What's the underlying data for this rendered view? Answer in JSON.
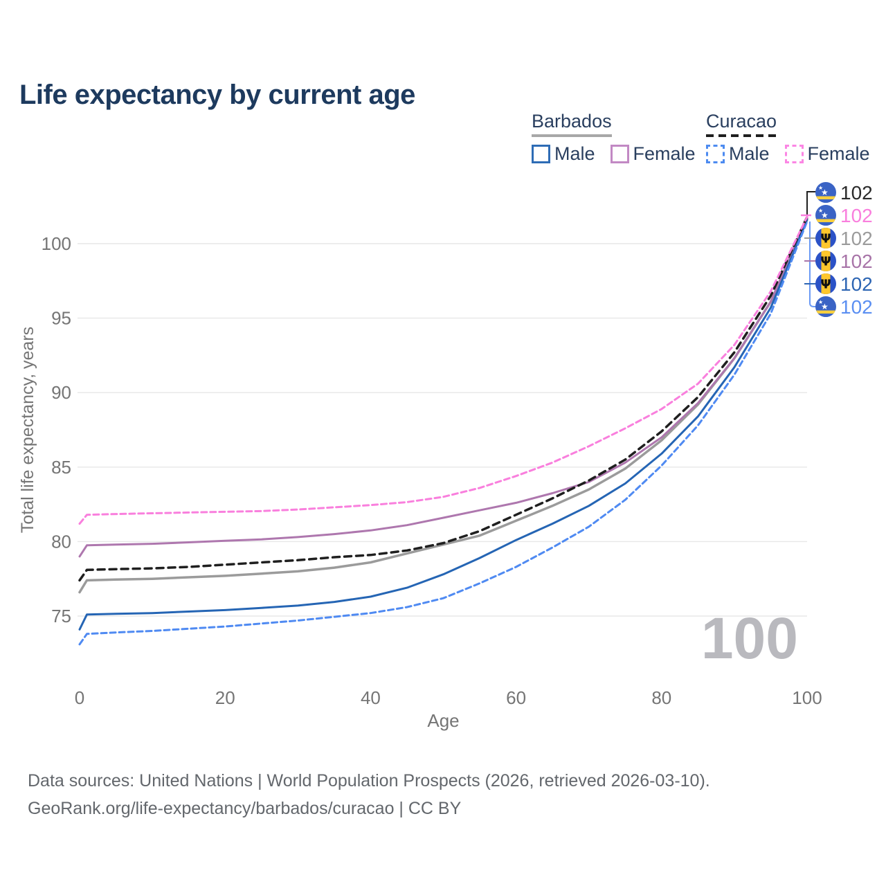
{
  "title": "Life expectancy by current age",
  "colors": {
    "title_text": "#1d3a5e",
    "legend_text": "#2a3f5f",
    "axis_text": "#757575",
    "grid": "#e7e7e7",
    "watermark": "#b9b9be",
    "footer_text": "#63676c",
    "background": "#ffffff"
  },
  "legend": {
    "groups": [
      {
        "id": "barbados",
        "label": "Barbados",
        "line_style": "solid",
        "key_color": "#a8a8a8",
        "items": [
          {
            "id": "male",
            "label": "Male",
            "swatch_color": "#2e6cb5",
            "swatch_style": "solid"
          },
          {
            "id": "female",
            "label": "Female",
            "swatch_color": "#c289c4",
            "swatch_style": "solid"
          }
        ]
      },
      {
        "id": "curacao",
        "label": "Curacao",
        "line_style": "dashed",
        "key_color": "#1f1f1f",
        "items": [
          {
            "id": "male",
            "label": "Male",
            "swatch_color": "#4d8bf0",
            "swatch_style": "dashed"
          },
          {
            "id": "female",
            "label": "Female",
            "swatch_color": "#fb86e4",
            "swatch_style": "dashed"
          }
        ]
      }
    ]
  },
  "chart_data": {
    "type": "line",
    "title": "Life expectancy by current age",
    "xlabel": "Age",
    "ylabel": "Total life expectancy, years",
    "xlim": [
      0,
      100
    ],
    "ylim": [
      72.5,
      103
    ],
    "x_ticks": [
      0,
      20,
      40,
      60,
      80,
      100
    ],
    "y_ticks": [
      75,
      80,
      85,
      90,
      95,
      100
    ],
    "grid": "horizontal-only",
    "legend_position": "top-right",
    "series": [
      {
        "name": "Barbados Total",
        "country": "Barbados",
        "sex": "All",
        "color": "#9b9b9b",
        "dash": "solid",
        "width": 3.5,
        "end_value": 102,
        "points": [
          [
            0,
            76.6
          ],
          [
            1,
            77.4
          ],
          [
            5,
            77.45
          ],
          [
            10,
            77.5
          ],
          [
            15,
            77.6
          ],
          [
            20,
            77.7
          ],
          [
            25,
            77.85
          ],
          [
            30,
            78.0
          ],
          [
            35,
            78.25
          ],
          [
            40,
            78.6
          ],
          [
            45,
            79.2
          ],
          [
            50,
            79.8
          ],
          [
            55,
            80.4
          ],
          [
            60,
            81.4
          ],
          [
            65,
            82.4
          ],
          [
            70,
            83.5
          ],
          [
            75,
            84.9
          ],
          [
            80,
            86.8
          ],
          [
            85,
            89.2
          ],
          [
            90,
            92.3
          ],
          [
            95,
            96.1
          ],
          [
            100,
            101.7
          ]
        ]
      },
      {
        "name": "Barbados Female",
        "country": "Barbados",
        "sex": "Female",
        "color": "#ae77ae",
        "dash": "solid",
        "width": 3,
        "end_value": 102,
        "points": [
          [
            0,
            79.0
          ],
          [
            1,
            79.75
          ],
          [
            5,
            79.8
          ],
          [
            10,
            79.85
          ],
          [
            15,
            79.95
          ],
          [
            20,
            80.05
          ],
          [
            25,
            80.15
          ],
          [
            30,
            80.3
          ],
          [
            35,
            80.5
          ],
          [
            40,
            80.75
          ],
          [
            45,
            81.1
          ],
          [
            50,
            81.6
          ],
          [
            55,
            82.1
          ],
          [
            60,
            82.6
          ],
          [
            65,
            83.25
          ],
          [
            70,
            84.0
          ],
          [
            75,
            85.3
          ],
          [
            80,
            87.0
          ],
          [
            85,
            89.3
          ],
          [
            90,
            92.3
          ],
          [
            95,
            96.1
          ],
          [
            100,
            101.7
          ]
        ]
      },
      {
        "name": "Barbados Male",
        "country": "Barbados",
        "sex": "Male",
        "color": "#2565b4",
        "dash": "solid",
        "width": 3,
        "end_value": 102,
        "points": [
          [
            0,
            74.1
          ],
          [
            1,
            75.1
          ],
          [
            5,
            75.15
          ],
          [
            10,
            75.2
          ],
          [
            15,
            75.3
          ],
          [
            20,
            75.4
          ],
          [
            25,
            75.55
          ],
          [
            30,
            75.7
          ],
          [
            35,
            75.95
          ],
          [
            40,
            76.3
          ],
          [
            45,
            76.9
          ],
          [
            50,
            77.8
          ],
          [
            55,
            78.9
          ],
          [
            60,
            80.1
          ],
          [
            65,
            81.2
          ],
          [
            70,
            82.4
          ],
          [
            75,
            83.9
          ],
          [
            80,
            85.9
          ],
          [
            85,
            88.4
          ],
          [
            90,
            91.7
          ],
          [
            95,
            95.7
          ],
          [
            100,
            101.6
          ]
        ]
      },
      {
        "name": "Curacao Male",
        "country": "Curacao",
        "sex": "Male",
        "color": "#4f8af2",
        "dash": "dashed",
        "width": 3,
        "end_value": 102,
        "points": [
          [
            0,
            73.1
          ],
          [
            1,
            73.8
          ],
          [
            5,
            73.9
          ],
          [
            10,
            74.0
          ],
          [
            15,
            74.15
          ],
          [
            20,
            74.3
          ],
          [
            25,
            74.5
          ],
          [
            30,
            74.7
          ],
          [
            35,
            74.95
          ],
          [
            40,
            75.2
          ],
          [
            45,
            75.6
          ],
          [
            50,
            76.2
          ],
          [
            55,
            77.2
          ],
          [
            60,
            78.3
          ],
          [
            65,
            79.6
          ],
          [
            70,
            81.0
          ],
          [
            75,
            82.8
          ],
          [
            80,
            85.1
          ],
          [
            85,
            87.8
          ],
          [
            90,
            91.2
          ],
          [
            95,
            95.3
          ],
          [
            100,
            101.5
          ]
        ]
      },
      {
        "name": "Curacao Total",
        "country": "Curacao",
        "sex": "All",
        "color": "#1f1f1f",
        "dash": "dashed",
        "width": 3.5,
        "end_value": 102,
        "points": [
          [
            0,
            77.4
          ],
          [
            1,
            78.1
          ],
          [
            5,
            78.15
          ],
          [
            10,
            78.2
          ],
          [
            15,
            78.3
          ],
          [
            20,
            78.45
          ],
          [
            25,
            78.6
          ],
          [
            30,
            78.75
          ],
          [
            35,
            78.95
          ],
          [
            40,
            79.1
          ],
          [
            45,
            79.4
          ],
          [
            50,
            79.9
          ],
          [
            55,
            80.7
          ],
          [
            60,
            81.8
          ],
          [
            65,
            82.9
          ],
          [
            70,
            84.1
          ],
          [
            75,
            85.5
          ],
          [
            80,
            87.4
          ],
          [
            85,
            89.7
          ],
          [
            90,
            92.7
          ],
          [
            95,
            96.5
          ],
          [
            100,
            101.8
          ]
        ]
      },
      {
        "name": "Curacao Female",
        "country": "Curacao",
        "sex": "Female",
        "color": "#f97fdd",
        "dash": "dashed",
        "width": 3,
        "end_value": 102,
        "points": [
          [
            0,
            81.2
          ],
          [
            1,
            81.8
          ],
          [
            5,
            81.85
          ],
          [
            10,
            81.9
          ],
          [
            15,
            81.95
          ],
          [
            20,
            82.0
          ],
          [
            25,
            82.05
          ],
          [
            30,
            82.15
          ],
          [
            35,
            82.3
          ],
          [
            40,
            82.45
          ],
          [
            45,
            82.65
          ],
          [
            50,
            83.0
          ],
          [
            55,
            83.6
          ],
          [
            60,
            84.4
          ],
          [
            65,
            85.3
          ],
          [
            70,
            86.4
          ],
          [
            75,
            87.6
          ],
          [
            80,
            88.9
          ],
          [
            85,
            90.6
          ],
          [
            90,
            93.2
          ],
          [
            95,
            96.8
          ],
          [
            100,
            101.8
          ]
        ]
      }
    ]
  },
  "end_labels": [
    {
      "series": "Curacao Total",
      "flag": "curacao",
      "value": "102",
      "color": "#2b2b2b"
    },
    {
      "series": "Curacao Female",
      "flag": "curacao",
      "value": "102",
      "color": "#f97fdd"
    },
    {
      "series": "Barbados Total",
      "flag": "barbados",
      "value": "102",
      "color": "#9b9b9b"
    },
    {
      "series": "Barbados Female",
      "flag": "barbados",
      "value": "102",
      "color": "#a874a8"
    },
    {
      "series": "Barbados Male",
      "flag": "barbados",
      "value": "102",
      "color": "#2d65b3"
    },
    {
      "series": "Curacao Male",
      "flag": "curacao",
      "value": "102",
      "color": "#5b8ff2"
    }
  ],
  "watermark": "100",
  "footer": {
    "line1": "Data sources: United Nations | World Population Prospects (2026, retrieved 2026-03-10).",
    "line2": "GeoRank.org/life-expectancy/barbados/curacao | CC BY"
  }
}
